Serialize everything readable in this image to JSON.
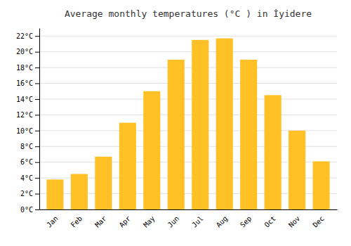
{
  "chart_data": {
    "type": "bar",
    "title": "Average monthly temperatures (°C ) in İyidere",
    "categories": [
      "Jan",
      "Feb",
      "Mar",
      "Apr",
      "May",
      "Jun",
      "Jul",
      "Aug",
      "Sep",
      "Oct",
      "Nov",
      "Dec"
    ],
    "values": [
      3.8,
      4.5,
      6.7,
      11.0,
      15.0,
      19.0,
      21.5,
      21.7,
      19.0,
      14.5,
      10.0,
      6.1
    ],
    "color": "#FFC125",
    "ylim": [
      0,
      23
    ],
    "yticks": [
      {
        "value": 0,
        "label": "0°C"
      },
      {
        "value": 2,
        "label": "2°C"
      },
      {
        "value": 4,
        "label": "4°C"
      },
      {
        "value": 6,
        "label": "6°C"
      },
      {
        "value": 8,
        "label": "8°C"
      },
      {
        "value": 10,
        "label": "10°C"
      },
      {
        "value": 12,
        "label": "12°C"
      },
      {
        "value": 14,
        "label": "14°C"
      },
      {
        "value": 16,
        "label": "16°C"
      },
      {
        "value": 18,
        "label": "18°C"
      },
      {
        "value": 20,
        "label": "20°C"
      },
      {
        "value": 22,
        "label": "22°C"
      }
    ],
    "grid": true
  }
}
